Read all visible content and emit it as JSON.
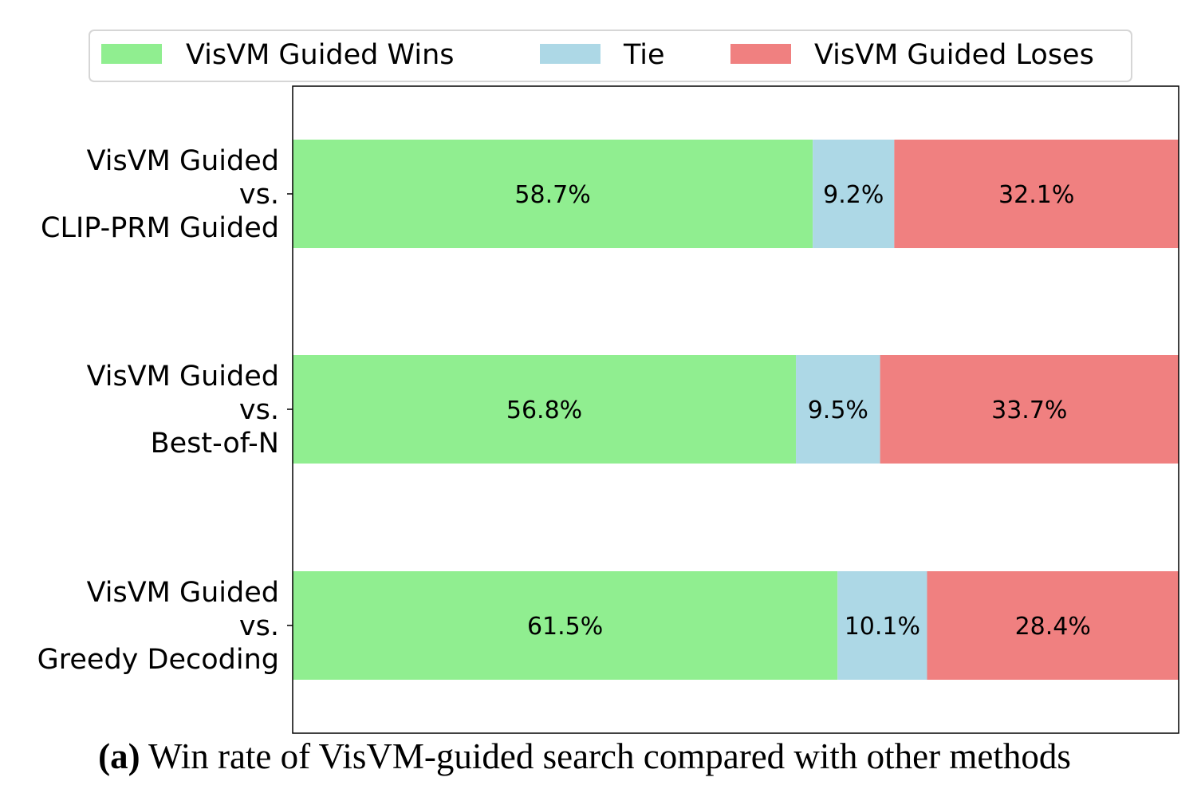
{
  "chart_data": {
    "type": "bar",
    "orientation": "horizontal",
    "stacked": true,
    "categories": [
      "VisVM Guided\nvs.\nCLIP-PRM Guided",
      "VisVM Guided\nvs.\nBest-of-N",
      "VisVM Guided\nvs.\nGreedy Decoding"
    ],
    "series": [
      {
        "name": "VisVM Guided Wins",
        "color": "#90ee90",
        "values": [
          58.7,
          56.8,
          61.5
        ],
        "labels": [
          "58.7%",
          "56.8%",
          "61.5%"
        ]
      },
      {
        "name": "Tie",
        "color": "#add8e6",
        "values": [
          9.2,
          9.5,
          10.1
        ],
        "labels": [
          "9.2%",
          "9.5%",
          "10.1%"
        ]
      },
      {
        "name": "VisVM Guided Loses",
        "color": "#f08080",
        "values": [
          32.1,
          33.7,
          28.4
        ],
        "labels": [
          "32.1%",
          "33.7%",
          "28.4%"
        ]
      }
    ],
    "xlim": [
      0,
      100
    ],
    "grid": false,
    "legend_position": "top",
    "title": "",
    "xlabel": "",
    "ylabel": ""
  },
  "caption": {
    "prefix": "(a)",
    "text": "Win rate of VisVM-guided search compared with other methods"
  }
}
